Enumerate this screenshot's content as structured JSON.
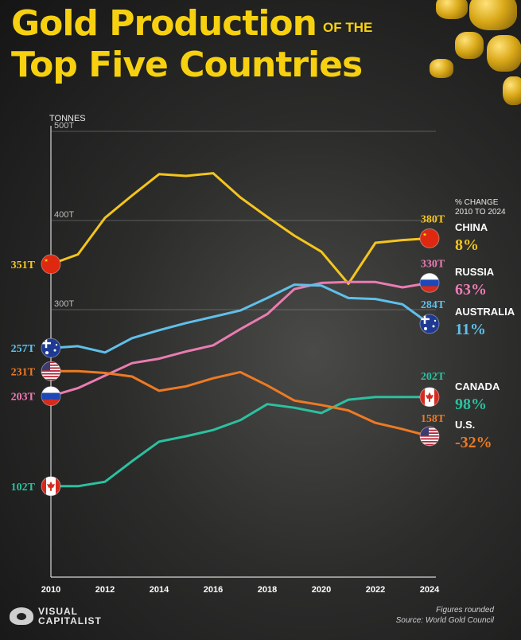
{
  "header": {
    "title_line1": "Gold Production",
    "title_small": "OF THE",
    "title_line2": "Top Five Countries"
  },
  "chart_data": {
    "type": "line",
    "ylabel": "TONNES",
    "ylim": [
      0,
      500
    ],
    "y_ticks": [
      "500T",
      "400T",
      "300T"
    ],
    "x_ticks": [
      "2010",
      "2012",
      "2014",
      "2016",
      "2018",
      "2020",
      "2022",
      "2024"
    ],
    "x": [
      2010,
      2011,
      2012,
      2013,
      2014,
      2015,
      2016,
      2017,
      2018,
      2019,
      2020,
      2021,
      2022,
      2023,
      2024
    ],
    "legend_header": "% CHANGE\n2010 TO 2024",
    "series": [
      {
        "name": "CHINA",
        "color": "#f4c51d",
        "pct": "8%",
        "start_label": "351T",
        "end_label": "380T",
        "values": [
          351,
          362,
          403,
          428,
          452,
          450,
          453,
          426,
          404,
          383,
          365,
          329,
          375,
          378,
          380
        ]
      },
      {
        "name": "RUSSIA",
        "color": "#ea7cb2",
        "pct": "63%",
        "start_label": "203T",
        "end_label": "330T",
        "values": [
          203,
          212,
          226,
          240,
          245,
          253,
          260,
          278,
          295,
          323,
          330,
          331,
          331,
          325,
          330
        ]
      },
      {
        "name": "AUSTRALIA",
        "color": "#5fc0ea",
        "pct": "11%",
        "start_label": "257T",
        "end_label": "284T",
        "values": [
          257,
          259,
          252,
          268,
          277,
          285,
          292,
          299,
          313,
          328,
          327,
          313,
          312,
          306,
          284
        ]
      },
      {
        "name": "CANADA",
        "color": "#2bc1a0",
        "pct": "98%",
        "start_label": "102T",
        "end_label": "202T",
        "values": [
          102,
          102,
          107,
          130,
          152,
          158,
          165,
          176,
          194,
          190,
          184,
          199,
          202,
          202,
          202
        ]
      },
      {
        "name": "U.S.",
        "color": "#ee7a22",
        "pct": "-32%",
        "start_label": "231T",
        "end_label": "158T",
        "values": [
          231,
          231,
          229,
          225,
          209,
          214,
          223,
          230,
          215,
          198,
          193,
          187,
          173,
          166,
          158
        ]
      }
    ]
  },
  "footer": {
    "brand_line1": "VISUAL",
    "brand_line2": "CAPITALIST",
    "note": "Figures rounded",
    "source": "Source: World Gold Council"
  }
}
